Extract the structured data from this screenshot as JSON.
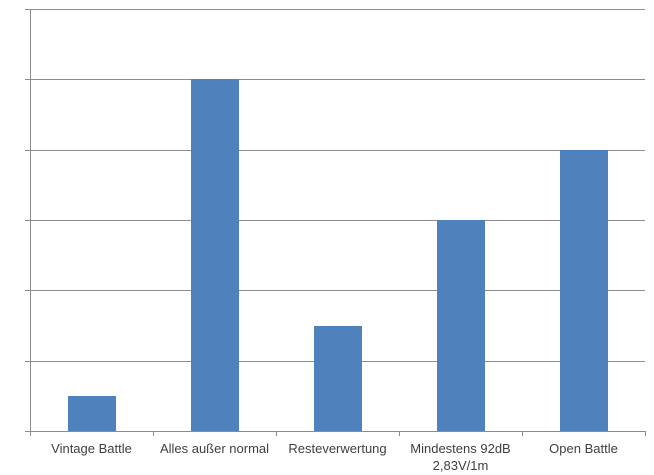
{
  "chart_data": {
    "type": "bar",
    "categories": [
      "Vintage Battle",
      "Alles außer normal",
      "Resteverwertung",
      "Mindestens 92dB\n2,83V/1m",
      "Open Battle"
    ],
    "values": [
      1,
      10,
      3,
      6,
      8
    ],
    "title": "",
    "xlabel": "",
    "ylabel": "",
    "ylim": [
      0,
      12
    ],
    "yticks": [
      0,
      2,
      4,
      6,
      8,
      10,
      12
    ],
    "grid": true,
    "legend": false,
    "colors": {
      "bar": "#4F81BD",
      "gridline": "#8C8C8C",
      "axis": "#8C8C8C",
      "label": "#3F3F3F",
      "background": "#FFFFFF"
    }
  }
}
